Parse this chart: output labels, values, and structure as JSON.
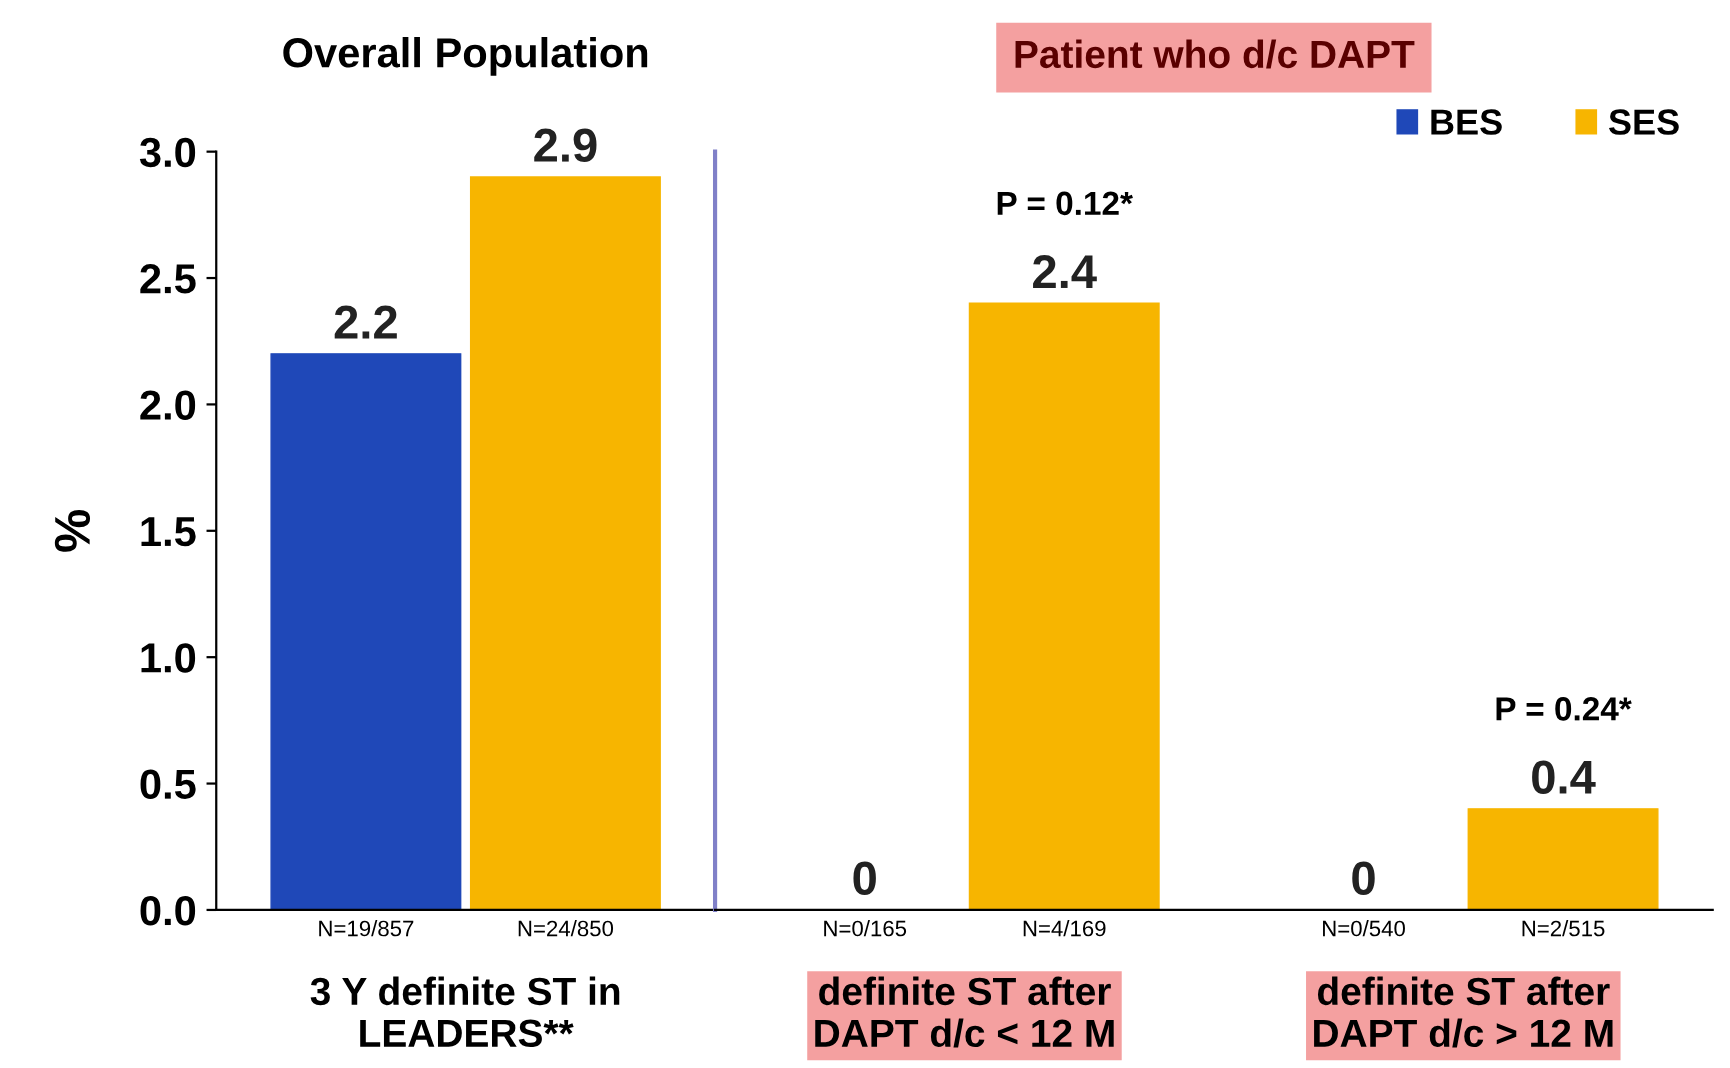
{
  "chart_data": [
    {
      "type": "bar",
      "title": "Overall Population",
      "categories": [
        "3 Y definite ST in\nLEADERS**"
      ],
      "series": [
        {
          "color": "#1f48b8",
          "values": [
            2.2
          ]
        },
        {
          "color": "#f7b500",
          "values": [
            2.9
          ]
        }
      ],
      "ylabel": "%",
      "ylim": [
        0,
        3
      ],
      "yticks": [
        {
          "value": 0,
          "label": "0.0"
        },
        0.5,
        {
          "value": 1,
          "label": "1.0"
        },
        1.5,
        {
          "value": 2,
          "label": "2.0"
        },
        2.5,
        {
          "value": 3,
          "label": "3.0"
        }
      ],
      "data_labels": true,
      "grid": false,
      "annotations": [
        "N=19/857",
        "N=24/850"
      ]
    },
    {
      "type": "bar",
      "title": "Patient who d/c DAPT",
      "categories": [
        "definite ST after\nDAPT d/c < 12 M",
        "definite ST after\nDAPT d/c > 12 M"
      ],
      "series": [
        {
          "name": "BES",
          "color": "#1f48b8",
          "values": [
            0,
            0
          ]
        },
        {
          "name": "SES",
          "color": "#f7b500",
          "values": [
            2.4,
            0.4
          ]
        }
      ],
      "ylim": [
        0,
        3
      ],
      "tick_labels": "x",
      "data_labels": true,
      "grid": false,
      "legend": "top right",
      "annotations": [
        "P = 0.12*",
        "P = 0.24*",
        "N=0/165",
        "N=4/169",
        "N=0/540",
        "N=2/515"
      ]
    }
  ]
}
